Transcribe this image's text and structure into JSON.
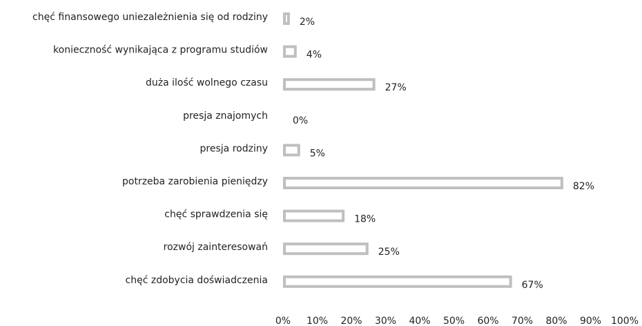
{
  "chart_data": {
    "type": "bar",
    "orientation": "horizontal",
    "categories": [
      "chęć finansowego uniezależnienia się od rodziny",
      "konieczność wynikająca z programu studiów",
      "duża ilość wolnego czasu",
      "presja znajomych",
      "presja rodziny",
      "potrzeba zarobienia pieniędzy",
      "chęć sprawdzenia się",
      "rozwój zainteresowań",
      "chęć zdobycia doświadczenia"
    ],
    "values": [
      2,
      4,
      27,
      0,
      5,
      82,
      18,
      25,
      67
    ],
    "value_labels": [
      "2%",
      "4%",
      "27%",
      "0%",
      "5%",
      "82%",
      "18%",
      "25%",
      "67%"
    ],
    "color": "#bfbfbf",
    "xlim": [
      0,
      100
    ],
    "xticks": [
      {
        "value": 0,
        "label": "0%"
      },
      {
        "value": 10,
        "label": "10%"
      },
      {
        "value": 20,
        "label": "20%"
      },
      {
        "value": 30,
        "label": "30%"
      },
      {
        "value": 40,
        "label": "40%"
      },
      {
        "value": 50,
        "label": "50%"
      },
      {
        "value": 60,
        "label": "60%"
      },
      {
        "value": 70,
        "label": "70%"
      },
      {
        "value": 80,
        "label": "80%"
      },
      {
        "value": 90,
        "label": "90%"
      },
      {
        "value": 100,
        "label": "100%"
      }
    ],
    "grid": false
  }
}
